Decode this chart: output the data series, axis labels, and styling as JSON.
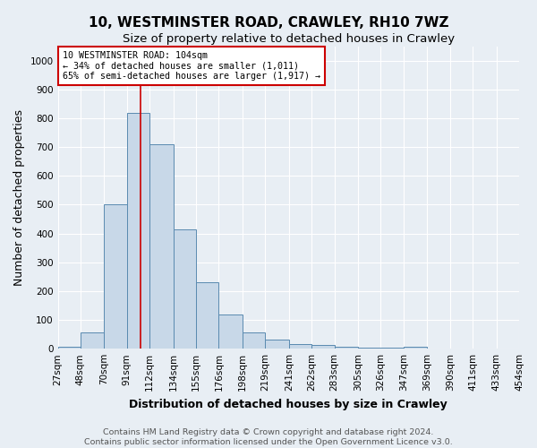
{
  "title1": "10, WESTMINSTER ROAD, CRAWLEY, RH10 7WZ",
  "title2": "Size of property relative to detached houses in Crawley",
  "xlabel": "Distribution of detached houses by size in Crawley",
  "ylabel": "Number of detached properties",
  "footnote1": "Contains HM Land Registry data © Crown copyright and database right 2024.",
  "footnote2": "Contains public sector information licensed under the Open Government Licence v3.0.",
  "bin_edges": [
    27,
    48,
    70,
    91,
    112,
    134,
    155,
    176,
    198,
    219,
    241,
    262,
    283,
    305,
    326,
    347,
    369,
    390,
    411,
    433,
    454
  ],
  "bar_heights": [
    8,
    57,
    500,
    820,
    710,
    415,
    230,
    120,
    57,
    33,
    15,
    12,
    8,
    5,
    5,
    8,
    0,
    0,
    0,
    0
  ],
  "bar_color": "#c8d8e8",
  "bar_edge_color": "#5a8ab0",
  "red_line_x": 104,
  "red_line_color": "#cc0000",
  "annotation_text": "10 WESTMINSTER ROAD: 104sqm\n← 34% of detached houses are smaller (1,011)\n65% of semi-detached houses are larger (1,917) →",
  "annotation_box_color": "#ffffff",
  "annotation_box_edge_color": "#cc0000",
  "ylim": [
    0,
    1050
  ],
  "yticks": [
    0,
    100,
    200,
    300,
    400,
    500,
    600,
    700,
    800,
    900,
    1000
  ],
  "background_color": "#e8eef4",
  "grid_color": "#ffffff",
  "title1_fontsize": 11,
  "title2_fontsize": 9.5,
  "axis_label_fontsize": 9,
  "tick_fontsize": 7.5,
  "footnote_fontsize": 6.8
}
